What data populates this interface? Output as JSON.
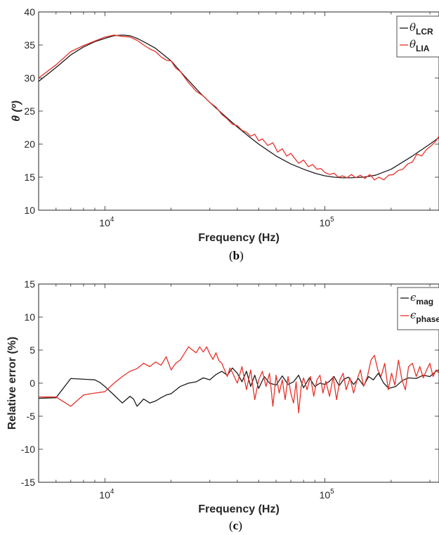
{
  "chart_data": [
    {
      "type": "line",
      "panel_label": "b",
      "xlabel": "Frequency (Hz)",
      "ylabel": "θ (º)",
      "xscale": "log",
      "xlim": [
        5000,
        330000
      ],
      "ylim": [
        10,
        40
      ],
      "x_tick_labels": [
        {
          "value": 10000,
          "base": "10",
          "exp": "4"
        },
        {
          "value": 100000,
          "base": "10",
          "exp": "5"
        }
      ],
      "y_ticks": [
        10,
        15,
        20,
        25,
        30,
        35,
        40
      ],
      "y_tick_labels": [
        "10",
        "15",
        "20",
        "25",
        "30",
        "35",
        "40"
      ],
      "legend_position": "top-right",
      "series": [
        {
          "name": "θ",
          "name_sub": "LCR",
          "color": "#1a1a1a",
          "x": [
            5000,
            6000,
            7000,
            8000,
            9000,
            10000,
            11000,
            12000,
            13000,
            14000,
            15000,
            17000,
            20000,
            23000,
            27000,
            30000,
            35000,
            40000,
            45000,
            50000,
            60000,
            70000,
            80000,
            90000,
            100000,
            110000,
            120000,
            130000,
            150000,
            170000,
            200000,
            250000,
            300000,
            330000
          ],
          "y": [
            29.5,
            31.6,
            33.5,
            34.7,
            35.5,
            36.0,
            36.4,
            36.5,
            36.4,
            36.0,
            35.5,
            34.5,
            32.6,
            30.3,
            27.8,
            26.3,
            24.3,
            22.6,
            21.2,
            20.0,
            18.2,
            17.0,
            16.2,
            15.6,
            15.2,
            15.0,
            14.9,
            14.9,
            15.0,
            15.3,
            16.2,
            18.2,
            20.0,
            21.0
          ]
        },
        {
          "name": "θ",
          "name_sub": "LIA",
          "color": "#e8312a",
          "x": [
            5000,
            6000,
            7000,
            8000,
            9000,
            10000,
            11000,
            12000,
            13000,
            14000,
            15000,
            16000,
            17000,
            18000,
            19000,
            20000,
            21000,
            22000,
            24000,
            26000,
            28000,
            30000,
            32000,
            34000,
            36000,
            38000,
            40000,
            42000,
            44000,
            46000,
            48000,
            50000,
            52000,
            55000,
            58000,
            61000,
            64000,
            67000,
            70000,
            73000,
            76000,
            80000,
            84000,
            88000,
            92000,
            96000,
            100000,
            105000,
            110000,
            115000,
            120000,
            126000,
            132000,
            138000,
            145000,
            152000,
            160000,
            168000,
            176000,
            185000,
            195000,
            205000,
            215000,
            226000,
            238000,
            250000,
            262000,
            275000,
            290000,
            305000,
            320000,
            330000
          ],
          "y": [
            30.0,
            32.0,
            34.0,
            34.9,
            35.6,
            36.2,
            36.5,
            36.3,
            36.2,
            35.7,
            35.0,
            34.4,
            34.0,
            33.2,
            32.7,
            32.6,
            31.5,
            31.0,
            29.3,
            28.0,
            27.3,
            26.3,
            25.6,
            24.5,
            23.8,
            23.0,
            22.8,
            22.1,
            21.8,
            21.2,
            21.5,
            20.5,
            20.8,
            19.8,
            20.2,
            18.8,
            19.3,
            18.2,
            18.6,
            17.8,
            17.1,
            17.6,
            16.6,
            16.9,
            16.2,
            16.3,
            15.7,
            15.4,
            15.6,
            15.0,
            15.2,
            14.9,
            15.4,
            14.9,
            15.3,
            14.8,
            15.4,
            14.6,
            15.0,
            14.6,
            15.3,
            15.4,
            16.0,
            16.2,
            17.0,
            17.3,
            18.5,
            18.2,
            19.2,
            19.8,
            20.5,
            21.2
          ]
        }
      ]
    },
    {
      "type": "line",
      "panel_label": "c",
      "xlabel": "Frequency (Hz)",
      "ylabel": "Relative error (%)",
      "xscale": "log",
      "xlim": [
        5000,
        330000
      ],
      "ylim": [
        -15,
        15
      ],
      "x_tick_labels": [
        {
          "value": 10000,
          "base": "10",
          "exp": "4"
        },
        {
          "value": 100000,
          "base": "10",
          "exp": "5"
        }
      ],
      "y_ticks": [
        -15,
        -10,
        -5,
        0,
        5,
        10,
        15
      ],
      "y_tick_labels": [
        "-15",
        "-10",
        "-5",
        "0",
        "5",
        "10",
        "15"
      ],
      "legend_position": "top-right",
      "series": [
        {
          "name": "ϵ",
          "name_sub": "mag",
          "color": "#1a1a1a",
          "x": [
            5000,
            6000,
            7000,
            8000,
            9000,
            9500,
            10000,
            11000,
            12000,
            13000,
            13500,
            14000,
            15000,
            16000,
            17000,
            18000,
            19000,
            20000,
            22000,
            24000,
            26000,
            28000,
            30000,
            32000,
            34000,
            36000,
            38000,
            40000,
            42000,
            44000,
            46000,
            48000,
            50000,
            53000,
            56000,
            60000,
            64000,
            68000,
            72000,
            76000,
            80000,
            85000,
            90000,
            95000,
            100000,
            105000,
            110000,
            116000,
            122000,
            128000,
            135000,
            142000,
            150000,
            158000,
            166000,
            175000,
            185000,
            195000,
            210000,
            225000,
            240000,
            260000,
            280000,
            300000,
            320000,
            330000
          ],
          "y": [
            -2.3,
            -2.2,
            0.7,
            0.6,
            0.5,
            0.1,
            -0.5,
            -1.8,
            -3.0,
            -2.0,
            -2.4,
            -3.5,
            -2.4,
            -3.0,
            -2.7,
            -2.2,
            -1.8,
            -1.6,
            -0.5,
            0.0,
            0.2,
            0.8,
            0.5,
            1.3,
            1.8,
            1.2,
            2.3,
            1.5,
            0.2,
            1.8,
            -0.5,
            1.2,
            -0.8,
            1.0,
            0.0,
            -0.3,
            1.1,
            -0.2,
            0.2,
            1.2,
            -0.7,
            0.8,
            -0.5,
            0.0,
            -0.2,
            0.3,
            1.0,
            -0.4,
            0.6,
            0.9,
            -0.2,
            0.7,
            -0.4,
            1.0,
            0.5,
            1.5,
            0.0,
            -0.8,
            -0.5,
            0.4,
            0.8,
            0.7,
            1.2,
            1.0,
            1.8,
            2.0
          ]
        },
        {
          "name": "ϵ",
          "name_sub": "phase",
          "color": "#e8312a",
          "x": [
            5000,
            6000,
            7000,
            8000,
            9000,
            10000,
            11000,
            12000,
            13000,
            14000,
            15000,
            16000,
            17000,
            18000,
            19000,
            20000,
            21000,
            22000,
            23000,
            24000,
            25000,
            26000,
            27000,
            28000,
            29000,
            30000,
            31000,
            32000,
            33000,
            34000,
            35000,
            36000,
            37000,
            38000,
            40000,
            42000,
            44000,
            46000,
            48000,
            50000,
            52000,
            54000,
            56000,
            58000,
            60000,
            62000,
            64000,
            66000,
            68000,
            70000,
            72000,
            74000,
            76000,
            78000,
            80000,
            83000,
            86000,
            89000,
            92000,
            95000,
            98000,
            101000,
            105000,
            109000,
            113000,
            117000,
            121000,
            125000,
            130000,
            135000,
            140000,
            145000,
            150000,
            156000,
            162000,
            168000,
            174000,
            180000,
            187000,
            194000,
            201000,
            208000,
            216000,
            224000,
            232000,
            240000,
            250000,
            260000,
            270000,
            280000,
            290000,
            300000,
            310000,
            320000,
            330000
          ],
          "y": [
            -2.1,
            -2.1,
            -3.5,
            -1.8,
            -1.5,
            -1.3,
            0.0,
            1.0,
            1.8,
            2.2,
            3.0,
            2.5,
            3.2,
            2.7,
            4.0,
            2.0,
            3.0,
            3.5,
            4.5,
            5.5,
            5.0,
            4.6,
            5.5,
            4.7,
            5.5,
            4.4,
            3.6,
            4.6,
            3.4,
            3.0,
            2.0,
            1.0,
            2.3,
            1.6,
            0.0,
            2.5,
            -1.0,
            2.0,
            -2.5,
            0.5,
            1.8,
            -0.5,
            1.5,
            -3.5,
            1.2,
            -1.5,
            0.5,
            -2.5,
            1.0,
            -1.5,
            -3.0,
            0.2,
            -4.5,
            -0.5,
            0.8,
            -1.0,
            1.0,
            -2.0,
            0.5,
            1.2,
            -1.5,
            0.3,
            -2.0,
            1.0,
            -2.5,
            0.5,
            1.5,
            -1.0,
            0.8,
            -1.5,
            0.5,
            2.0,
            -0.5,
            1.0,
            3.5,
            4.2,
            2.0,
            1.0,
            3.0,
            -1.0,
            1.5,
            -0.3,
            3.5,
            0.5,
            -1.0,
            2.5,
            3.0,
            1.0,
            2.5,
            0.8,
            2.0,
            3.0,
            1.0,
            2.0,
            1.5
          ]
        }
      ]
    }
  ]
}
